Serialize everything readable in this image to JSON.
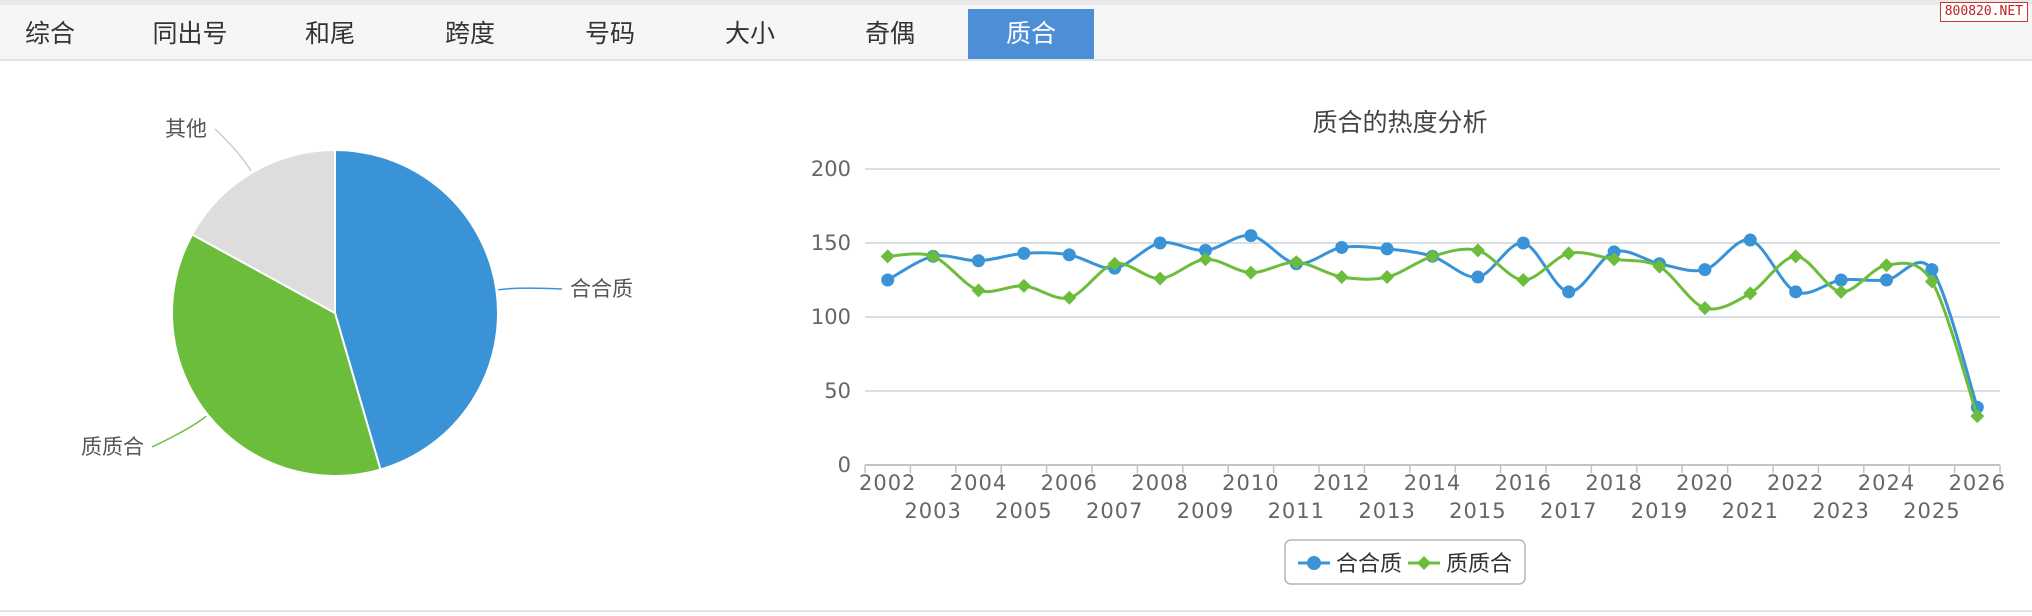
{
  "tabs": [
    {
      "label": "综合",
      "active": false
    },
    {
      "label": "同出号",
      "active": false
    },
    {
      "label": "和尾",
      "active": false
    },
    {
      "label": "跨度",
      "active": false
    },
    {
      "label": "号码",
      "active": false
    },
    {
      "label": "大小",
      "active": false
    },
    {
      "label": "奇偶",
      "active": false
    },
    {
      "label": "质合",
      "active": true
    }
  ],
  "watermark": "800820.NET",
  "colors": {
    "series1": "#3a93d6",
    "series2": "#6dbd3c",
    "other": "#dddddd",
    "tab_active": "#4d8fd6"
  },
  "chart_data": [
    {
      "type": "pie",
      "slices": [
        {
          "label": "合合质",
          "value": 45.5,
          "color": "#3a93d6"
        },
        {
          "label": "质质合",
          "value": 37.5,
          "color": "#6dbd3c"
        },
        {
          "label": "其他",
          "value": 17.0,
          "color": "#dddddd"
        }
      ]
    },
    {
      "type": "line",
      "title": "质合的热度分析",
      "x": [
        "2002",
        "2003",
        "2004",
        "2005",
        "2006",
        "2007",
        "2008",
        "2009",
        "2010",
        "2011",
        "2012",
        "2013",
        "2014",
        "2015",
        "2016",
        "2017",
        "2018",
        "2019",
        "2020",
        "2021",
        "2022",
        "2023",
        "2024",
        "2025",
        "2026"
      ],
      "series": [
        {
          "name": "合合质",
          "color": "#3a93d6",
          "marker": "circle",
          "values": [
            125,
            141,
            138,
            143,
            142,
            133,
            150,
            145,
            155,
            136,
            147,
            146,
            141,
            127,
            150,
            117,
            144,
            136,
            132,
            152,
            117,
            125,
            125,
            132,
            39
          ]
        },
        {
          "name": "质质合",
          "color": "#6dbd3c",
          "marker": "diamond",
          "values": [
            141,
            141,
            118,
            121,
            113,
            136,
            126,
            139,
            130,
            137,
            127,
            127,
            141,
            145,
            125,
            143,
            139,
            134,
            106,
            116,
            141,
            117,
            135,
            124,
            33
          ]
        }
      ],
      "ylim": [
        0,
        200
      ],
      "yticks": [
        "0",
        "50",
        "100",
        "150",
        "200"
      ],
      "grid": true,
      "legend": "bottom-center"
    }
  ]
}
